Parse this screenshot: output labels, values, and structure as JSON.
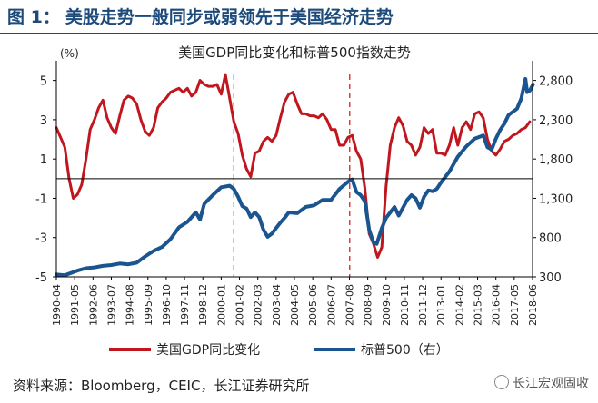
{
  "figure": {
    "number": "图 1：",
    "title": "美股走势一般同步或弱领先于美国经济走势"
  },
  "source": "资料来源：Bloomberg，CEIC，长江证券研究所",
  "watermark": "长江宏观固收",
  "chart_data": {
    "type": "line",
    "title": "美国GDP同比变化和标普500指数走势",
    "left_axis_unit": "(%)",
    "left_axis": {
      "ylim": [
        -5,
        6
      ],
      "ticks": [
        5,
        3,
        1,
        -1,
        -3,
        -5
      ]
    },
    "right_axis": {
      "ylim": [
        300,
        3050
      ],
      "ticks": [
        2800,
        2300,
        1800,
        1300,
        800,
        300
      ],
      "tick_labels": [
        "2,800",
        "2,300",
        "1,800",
        "1,300",
        "800",
        "300"
      ]
    },
    "x_axis": {
      "range": [
        "1990-04",
        "2018-06"
      ],
      "ticks": [
        "1990-04",
        "1991-05",
        "1992-06",
        "1993-07",
        "1994-08",
        "1995-09",
        "1996-10",
        "1997-11",
        "1998-12",
        "2000-01",
        "2001-02",
        "2002-03",
        "2003-04",
        "2004-05",
        "2005-06",
        "2006-07",
        "2007-08",
        "2008-09",
        "2009-10",
        "2010-11",
        "2011-12",
        "2013-01",
        "2014-02",
        "2015-03",
        "2016-04",
        "2017-05",
        "2018-06"
      ]
    },
    "zero_line": 0,
    "vlines": [
      {
        "x": 2000.75,
        "color": "#e02020",
        "style": "dashed"
      },
      {
        "x": 2007.6,
        "color": "#e02020",
        "style": "dashed"
      }
    ],
    "series": [
      {
        "name": "美国GDP同比变化",
        "axis": "left",
        "color": "#c0171f",
        "points": [
          [
            1990.25,
            2.6
          ],
          [
            1990.75,
            1.6
          ],
          [
            1991.0,
            0.0
          ],
          [
            1991.25,
            -1.0
          ],
          [
            1991.5,
            -0.8
          ],
          [
            1991.75,
            -0.3
          ],
          [
            1992.0,
            1.0
          ],
          [
            1992.25,
            2.5
          ],
          [
            1992.5,
            3.0
          ],
          [
            1992.75,
            3.6
          ],
          [
            1993.0,
            4.0
          ],
          [
            1993.25,
            3.1
          ],
          [
            1993.5,
            2.6
          ],
          [
            1993.75,
            2.3
          ],
          [
            1994.0,
            3.2
          ],
          [
            1994.25,
            4.0
          ],
          [
            1994.5,
            4.2
          ],
          [
            1994.75,
            4.1
          ],
          [
            1995.0,
            3.8
          ],
          [
            1995.25,
            3.0
          ],
          [
            1995.5,
            2.4
          ],
          [
            1995.75,
            2.2
          ],
          [
            1996.0,
            2.6
          ],
          [
            1996.25,
            3.6
          ],
          [
            1996.5,
            3.9
          ],
          [
            1996.75,
            4.1
          ],
          [
            1997.0,
            4.4
          ],
          [
            1997.25,
            4.5
          ],
          [
            1997.5,
            4.6
          ],
          [
            1997.75,
            4.4
          ],
          [
            1998.0,
            4.6
          ],
          [
            1998.25,
            4.2
          ],
          [
            1998.5,
            4.4
          ],
          [
            1998.75,
            5.0
          ],
          [
            1999.0,
            4.8
          ],
          [
            1999.25,
            4.7
          ],
          [
            1999.5,
            4.7
          ],
          [
            1999.75,
            4.8
          ],
          [
            2000.0,
            4.3
          ],
          [
            2000.25,
            5.3
          ],
          [
            2000.5,
            4.1
          ],
          [
            2000.75,
            2.9
          ],
          [
            2001.0,
            2.3
          ],
          [
            2001.25,
            1.2
          ],
          [
            2001.5,
            0.5
          ],
          [
            2001.75,
            0.1
          ],
          [
            2002.0,
            1.3
          ],
          [
            2002.25,
            1.4
          ],
          [
            2002.5,
            1.9
          ],
          [
            2002.75,
            2.1
          ],
          [
            2003.0,
            1.9
          ],
          [
            2003.25,
            2.2
          ],
          [
            2003.5,
            3.1
          ],
          [
            2003.75,
            3.9
          ],
          [
            2004.0,
            4.3
          ],
          [
            2004.25,
            4.4
          ],
          [
            2004.5,
            3.8
          ],
          [
            2004.75,
            3.3
          ],
          [
            2005.0,
            3.3
          ],
          [
            2005.25,
            3.2
          ],
          [
            2005.5,
            3.2
          ],
          [
            2005.75,
            3.1
          ],
          [
            2006.0,
            3.3
          ],
          [
            2006.25,
            3.0
          ],
          [
            2006.5,
            2.5
          ],
          [
            2006.75,
            2.5
          ],
          [
            2007.0,
            1.7
          ],
          [
            2007.25,
            1.7
          ],
          [
            2007.5,
            2.1
          ],
          [
            2007.75,
            2.2
          ],
          [
            2008.0,
            1.4
          ],
          [
            2008.25,
            1.0
          ],
          [
            2008.5,
            -0.5
          ],
          [
            2008.75,
            -2.8
          ],
          [
            2009.0,
            -3.3
          ],
          [
            2009.25,
            -4.0
          ],
          [
            2009.5,
            -3.5
          ],
          [
            2009.75,
            -0.4
          ],
          [
            2010.0,
            1.7
          ],
          [
            2010.25,
            2.6
          ],
          [
            2010.5,
            3.1
          ],
          [
            2010.75,
            2.7
          ],
          [
            2011.0,
            1.9
          ],
          [
            2011.25,
            1.7
          ],
          [
            2011.5,
            1.2
          ],
          [
            2011.75,
            1.6
          ],
          [
            2012.0,
            2.6
          ],
          [
            2012.25,
            2.3
          ],
          [
            2012.5,
            2.5
          ],
          [
            2012.75,
            1.3
          ],
          [
            2013.0,
            1.3
          ],
          [
            2013.25,
            1.2
          ],
          [
            2013.5,
            1.7
          ],
          [
            2013.75,
            2.6
          ],
          [
            2014.0,
            1.7
          ],
          [
            2014.25,
            2.6
          ],
          [
            2014.5,
            2.9
          ],
          [
            2014.75,
            2.5
          ],
          [
            2015.0,
            3.3
          ],
          [
            2015.25,
            3.4
          ],
          [
            2015.5,
            3.1
          ],
          [
            2015.75,
            2.0
          ],
          [
            2016.0,
            1.4
          ],
          [
            2016.25,
            1.2
          ],
          [
            2016.5,
            1.5
          ],
          [
            2016.75,
            1.9
          ],
          [
            2017.0,
            2.0
          ],
          [
            2017.25,
            2.2
          ],
          [
            2017.5,
            2.3
          ],
          [
            2017.75,
            2.5
          ],
          [
            2018.0,
            2.6
          ],
          [
            2018.25,
            2.9
          ]
        ]
      },
      {
        "name": "标普500（右）",
        "axis": "right",
        "color": "#1a5590",
        "points": [
          [
            1990.25,
            330
          ],
          [
            1990.75,
            320
          ],
          [
            1991.0,
            340
          ],
          [
            1991.5,
            380
          ],
          [
            1992.0,
            410
          ],
          [
            1992.5,
            420
          ],
          [
            1993.0,
            440
          ],
          [
            1993.5,
            450
          ],
          [
            1994.0,
            470
          ],
          [
            1994.5,
            460
          ],
          [
            1995.0,
            480
          ],
          [
            1995.5,
            560
          ],
          [
            1996.0,
            630
          ],
          [
            1996.5,
            680
          ],
          [
            1997.0,
            780
          ],
          [
            1997.5,
            930
          ],
          [
            1998.0,
            1000
          ],
          [
            1998.5,
            1120
          ],
          [
            1998.75,
            1030
          ],
          [
            1999.0,
            1230
          ],
          [
            1999.5,
            1340
          ],
          [
            2000.0,
            1440
          ],
          [
            2000.5,
            1460
          ],
          [
            2000.75,
            1420
          ],
          [
            2001.0,
            1320
          ],
          [
            2001.25,
            1200
          ],
          [
            2001.5,
            1170
          ],
          [
            2001.75,
            1060
          ],
          [
            2002.0,
            1120
          ],
          [
            2002.25,
            1060
          ],
          [
            2002.5,
            900
          ],
          [
            2002.75,
            810
          ],
          [
            2003.0,
            850
          ],
          [
            2003.25,
            920
          ],
          [
            2003.5,
            990
          ],
          [
            2003.75,
            1050
          ],
          [
            2004.0,
            1120
          ],
          [
            2004.5,
            1110
          ],
          [
            2005.0,
            1190
          ],
          [
            2005.5,
            1210
          ],
          [
            2006.0,
            1280
          ],
          [
            2006.5,
            1280
          ],
          [
            2007.0,
            1420
          ],
          [
            2007.5,
            1510
          ],
          [
            2007.75,
            1540
          ],
          [
            2008.0,
            1380
          ],
          [
            2008.25,
            1340
          ],
          [
            2008.5,
            1260
          ],
          [
            2008.75,
            900
          ],
          [
            2009.0,
            740
          ],
          [
            2009.2,
            720
          ],
          [
            2009.5,
            920
          ],
          [
            2009.75,
            1050
          ],
          [
            2010.0,
            1120
          ],
          [
            2010.25,
            1190
          ],
          [
            2010.5,
            1080
          ],
          [
            2010.75,
            1180
          ],
          [
            2011.0,
            1280
          ],
          [
            2011.25,
            1340
          ],
          [
            2011.5,
            1300
          ],
          [
            2011.75,
            1180
          ],
          [
            2012.0,
            1320
          ],
          [
            2012.25,
            1400
          ],
          [
            2012.5,
            1390
          ],
          [
            2012.75,
            1420
          ],
          [
            2013.0,
            1500
          ],
          [
            2013.5,
            1640
          ],
          [
            2014.0,
            1830
          ],
          [
            2014.5,
            1960
          ],
          [
            2015.0,
            2060
          ],
          [
            2015.5,
            2100
          ],
          [
            2015.75,
            1950
          ],
          [
            2016.0,
            1920
          ],
          [
            2016.25,
            2060
          ],
          [
            2016.5,
            2170
          ],
          [
            2016.75,
            2250
          ],
          [
            2017.0,
            2360
          ],
          [
            2017.5,
            2440
          ],
          [
            2017.75,
            2570
          ],
          [
            2018.0,
            2820
          ],
          [
            2018.1,
            2650
          ],
          [
            2018.25,
            2670
          ],
          [
            2018.45,
            2750
          ]
        ]
      }
    ],
    "legend": {
      "placement": "bottom",
      "items": [
        {
          "label": "美国GDP同比变化",
          "color": "#c0171f"
        },
        {
          "label": "标普500（右）",
          "color": "#1a5590"
        }
      ]
    }
  }
}
